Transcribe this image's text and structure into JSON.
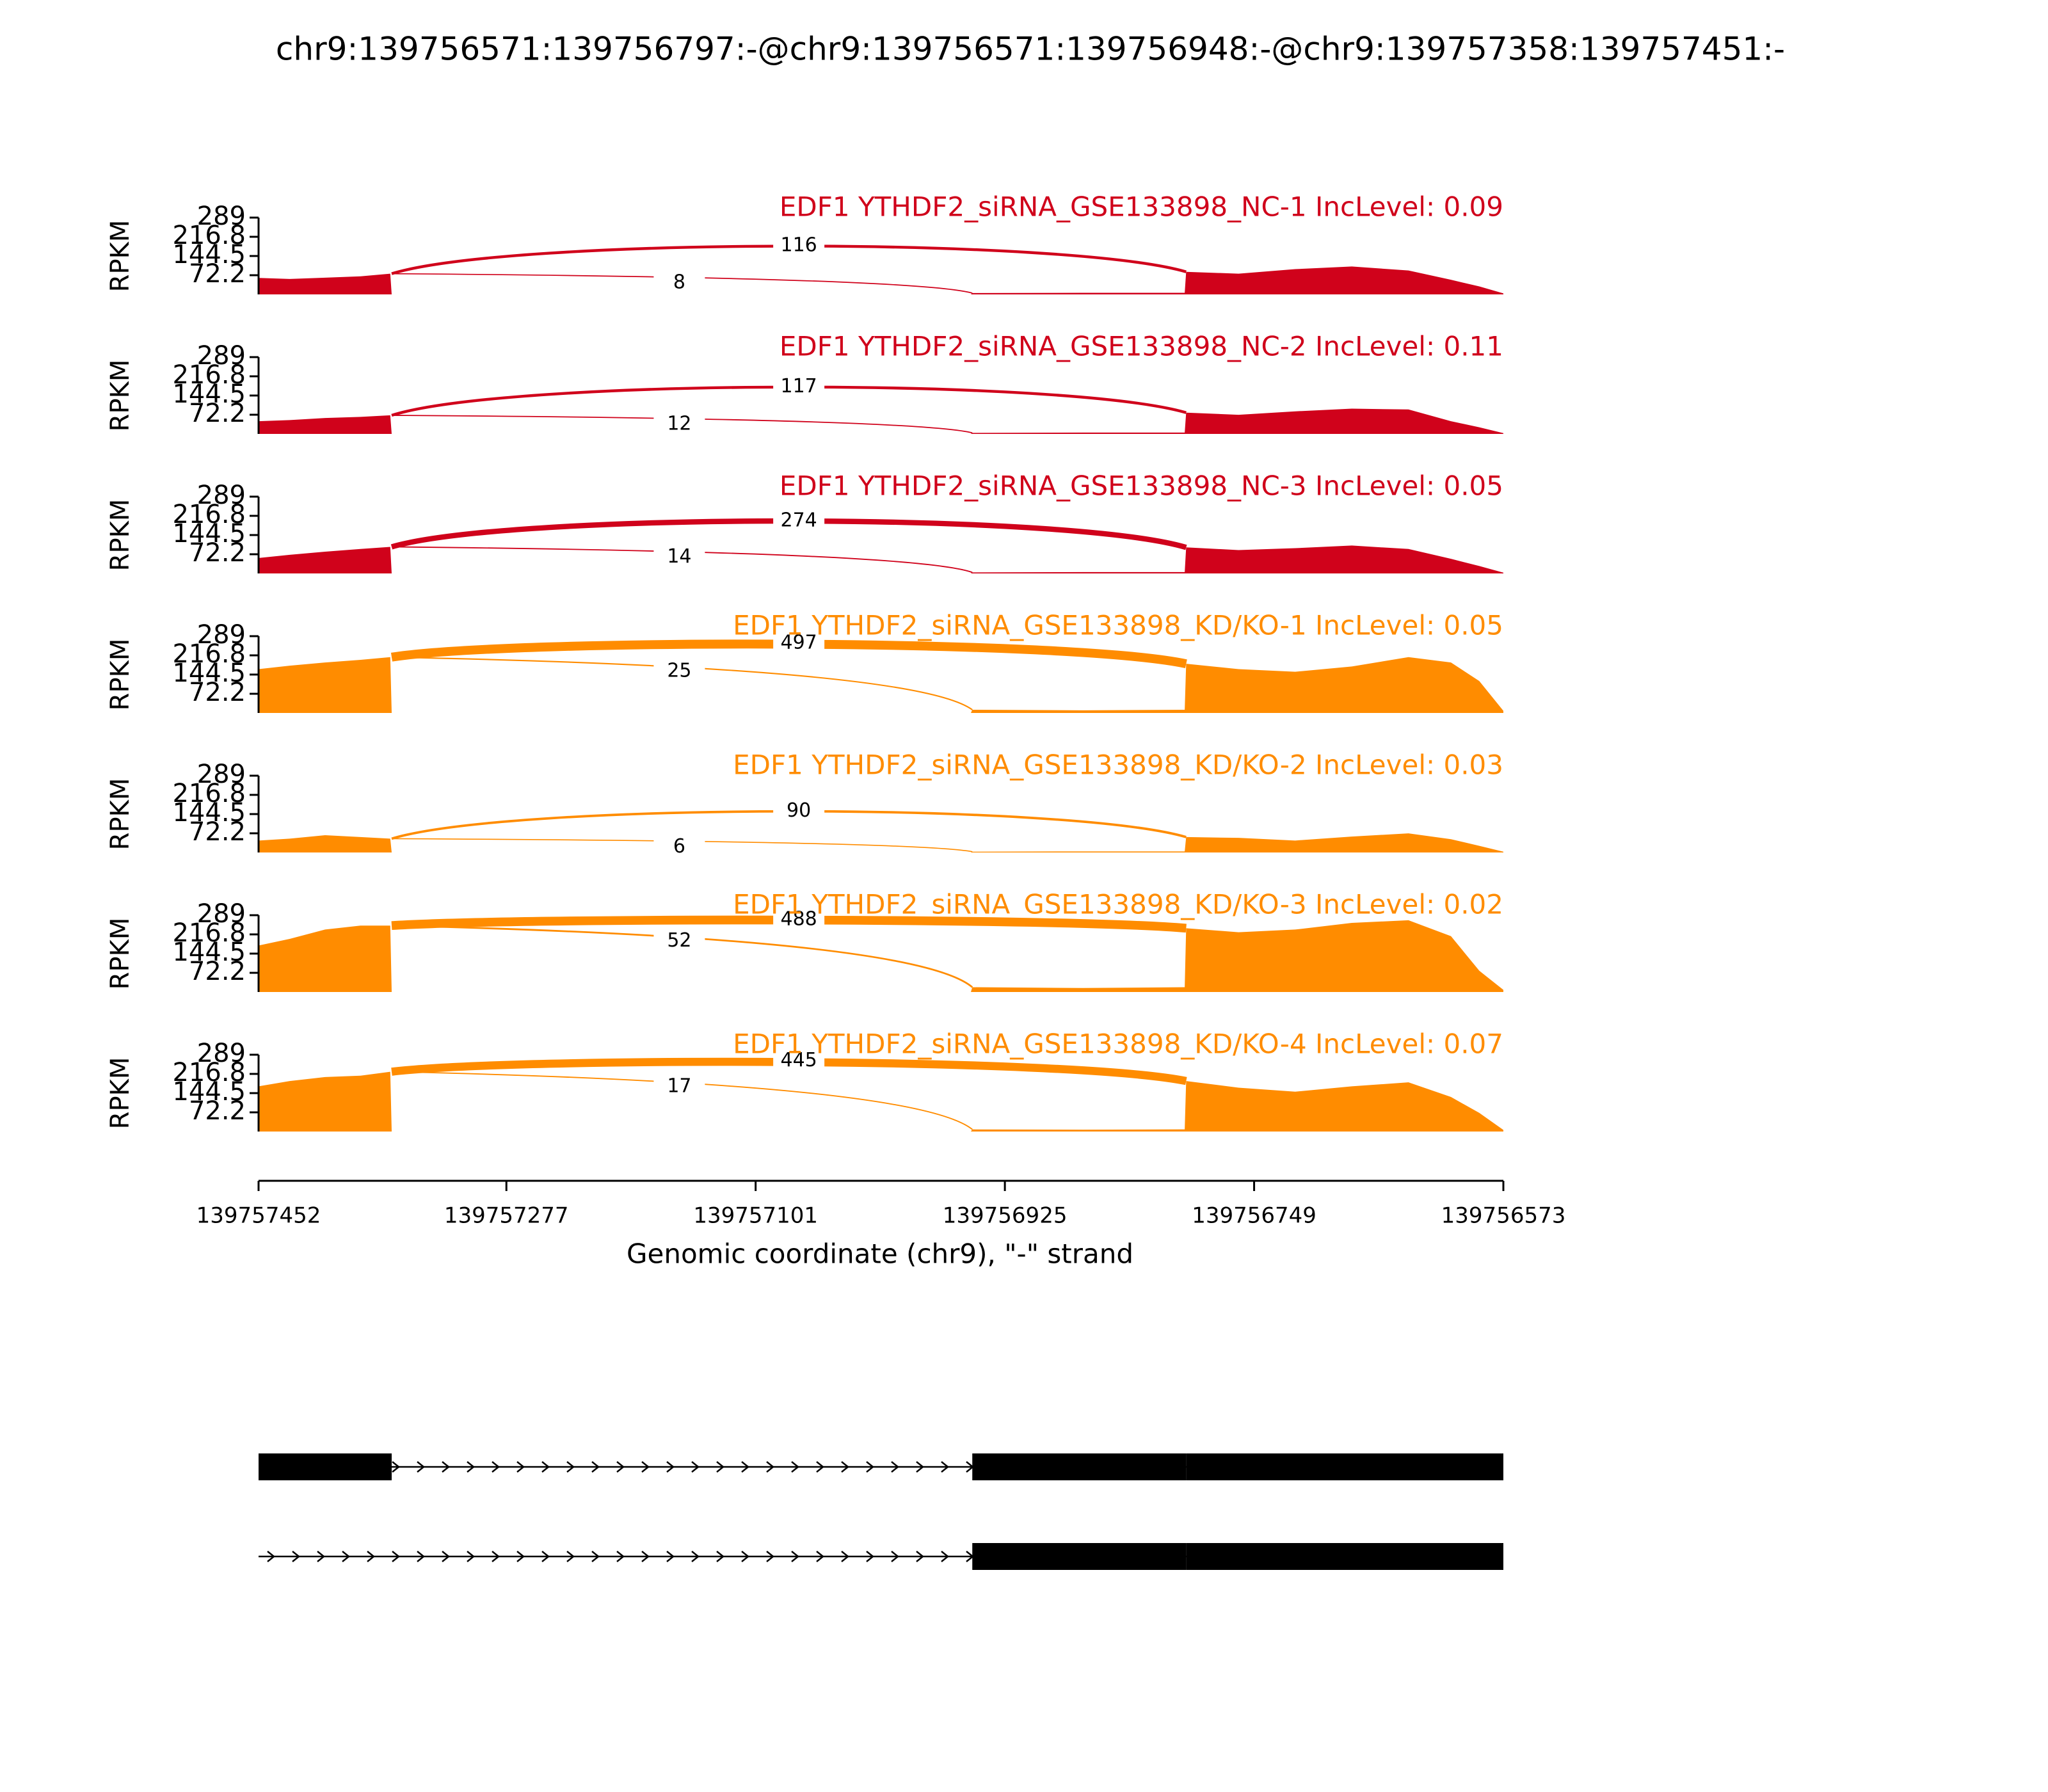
{
  "chart_data": {
    "type": "sashimi",
    "title": "chr9:139756571:139756797:-@chr9:139756571:139756948:-@chr9:139757358:139757451:-",
    "ylabel": "RPKM",
    "xlabel": "Genomic coordinate (chr9), \"-\" strand",
    "xlim": [
      139757452,
      139756573
    ],
    "xticks": [
      139757452,
      139757277,
      139757101,
      139756925,
      139756749,
      139756573
    ],
    "ylim": [
      0,
      289
    ],
    "yticks": [
      72.2,
      144.5,
      216.8,
      289
    ],
    "coverage_x": [
      139757452,
      139757430,
      139757405,
      139757380,
      139757359,
      139757358,
      139756949,
      139756948,
      139756870,
      139756798,
      139756797,
      139756760,
      139756720,
      139756680,
      139756640,
      139756610,
      139756590,
      139756573
    ],
    "junctions": [
      [
        139757358,
        139756797
      ],
      [
        139757358,
        139756948
      ]
    ],
    "panels": [
      {
        "label": "EDF1 YTHDF2_siRNA_GSE133898_NC-1 IncLevel: 0.09",
        "color": "#d0021b",
        "coverage": [
          62,
          58,
          63,
          68,
          78,
          0,
          0,
          5,
          6,
          6,
          85,
          78,
          95,
          105,
          90,
          55,
          30,
          4
        ],
        "junction_counts": [
          116,
          8
        ]
      },
      {
        "label": "EDF1 YTHDF2_siRNA_GSE133898_NC-2 IncLevel: 0.11",
        "color": "#d0021b",
        "coverage": [
          48,
          52,
          60,
          64,
          70,
          0,
          0,
          4,
          5,
          5,
          80,
          72,
          85,
          95,
          92,
          48,
          25,
          3
        ],
        "junction_counts": [
          117,
          12
        ]
      },
      {
        "label": "EDF1 YTHDF2_siRNA_GSE133898_NC-3 IncLevel: 0.05",
        "color": "#d0021b",
        "coverage": [
          58,
          70,
          82,
          92,
          100,
          0,
          0,
          4,
          5,
          5,
          98,
          88,
          95,
          105,
          92,
          55,
          28,
          3
        ],
        "junction_counts": [
          274,
          14
        ]
      },
      {
        "label": "EDF1 YTHDF2_siRNA_GSE133898_KD/KO-1 IncLevel: 0.05",
        "color": "#ff8c00",
        "coverage": [
          165,
          178,
          190,
          200,
          210,
          0,
          0,
          12,
          10,
          12,
          185,
          165,
          155,
          175,
          210,
          190,
          120,
          8
        ],
        "junction_counts": [
          497,
          25
        ]
      },
      {
        "label": "EDF1 YTHDF2_siRNA_GSE133898_KD/KO-2 IncLevel: 0.03",
        "color": "#ff8c00",
        "coverage": [
          45,
          52,
          65,
          58,
          52,
          0,
          0,
          3,
          4,
          4,
          58,
          55,
          45,
          60,
          72,
          50,
          25,
          3
        ],
        "junction_counts": [
          90,
          6
        ]
      },
      {
        "label": "EDF1 YTHDF2_siRNA_GSE133898_KD/KO-3 IncLevel: 0.02",
        "color": "#ff8c00",
        "coverage": [
          175,
          200,
          235,
          250,
          250,
          0,
          0,
          18,
          15,
          18,
          240,
          225,
          235,
          260,
          270,
          210,
          80,
          8
        ],
        "junction_counts": [
          488,
          52
        ]
      },
      {
        "label": "EDF1 YTHDF2_siRNA_GSE133898_KD/KO-4 IncLevel: 0.07",
        "color": "#ff8c00",
        "coverage": [
          170,
          190,
          205,
          210,
          225,
          0,
          0,
          8,
          7,
          8,
          190,
          165,
          150,
          170,
          185,
          130,
          70,
          6
        ],
        "junction_counts": [
          445,
          17
        ]
      }
    ],
    "transcripts": [
      {
        "span": [
          139757452,
          139756573
        ],
        "exons": [
          [
            139757452,
            139757358
          ],
          [
            139756948,
            139756797
          ],
          [
            139756797,
            139756573
          ]
        ]
      },
      {
        "span": [
          139757452,
          139756573
        ],
        "exons": [
          [
            139756948,
            139756797
          ],
          [
            139756797,
            139756573
          ]
        ]
      }
    ]
  }
}
